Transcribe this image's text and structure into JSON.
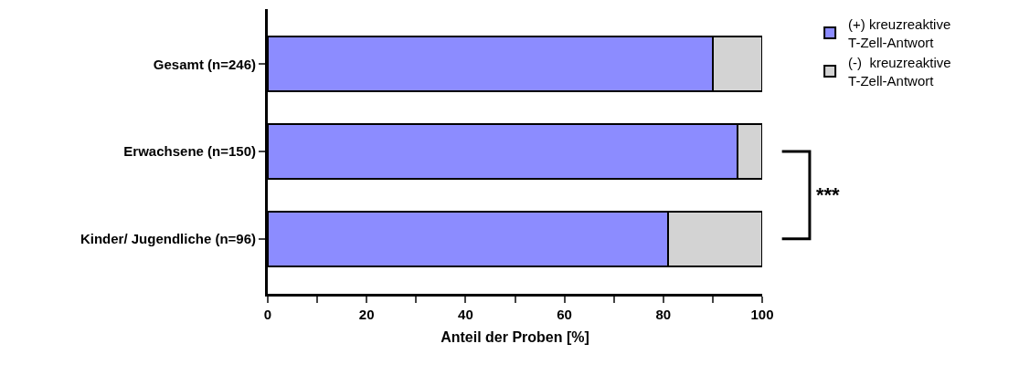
{
  "chart_data": {
    "type": "bar",
    "orientation": "horizontal",
    "stacked": true,
    "xlabel": "Anteil der Proben [%]",
    "categories": [
      "Gesamt (n=246)",
      "Erwachsene (n=150)",
      "Kinder/ Jugendliche (n=96)"
    ],
    "series": [
      {
        "name": "(+) kreuzreaktive T-Zell-Antwort",
        "color": "#8c8cff",
        "values": [
          90,
          95,
          81
        ]
      },
      {
        "name": "(-)  kreuzreaktive T-Zell-Antwort",
        "color": "#d3d3d3",
        "values": [
          10,
          5,
          19
        ]
      }
    ],
    "xlim": [
      0,
      100
    ],
    "xticks": [
      0,
      {
        "value": 10,
        "label": null
      },
      20,
      {
        "value": 30,
        "label": null
      },
      40,
      {
        "value": 50,
        "label": null
      },
      60,
      {
        "value": 70,
        "label": null
      },
      80,
      {
        "value": 90,
        "label": null
      },
      100
    ],
    "grid": false,
    "legend": "top right",
    "annotations": [
      "***"
    ]
  }
}
